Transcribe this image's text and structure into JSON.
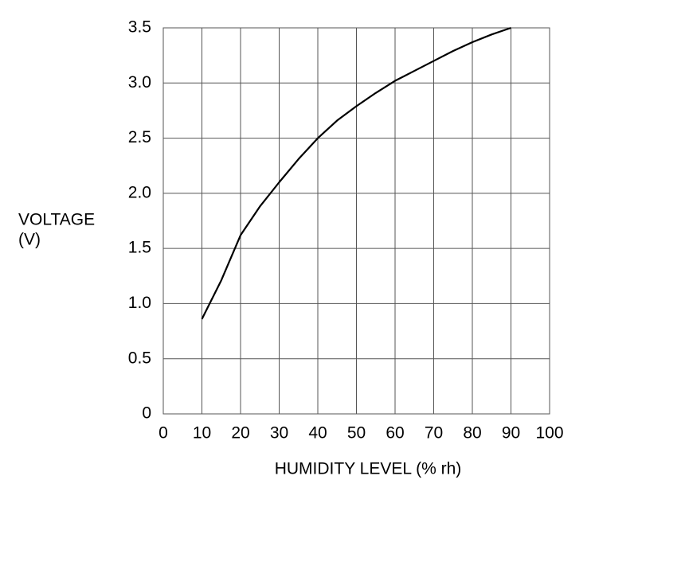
{
  "chart_data": {
    "type": "line",
    "ylabel_lines": [
      "VOLTAGE",
      "(V)"
    ],
    "xlabel": "HUMIDITY LEVEL (% rh)",
    "x": [
      10,
      15,
      20,
      25,
      30,
      35,
      40,
      45,
      50,
      55,
      60,
      65,
      70,
      75,
      80,
      85,
      90
    ],
    "series": [
      {
        "color": "#000000",
        "values": [
          0.86,
          1.21,
          1.62,
          1.88,
          2.1,
          2.31,
          2.5,
          2.66,
          2.79,
          2.91,
          3.02,
          3.11,
          3.2,
          3.29,
          3.37,
          3.44,
          3.5
        ]
      }
    ],
    "xlim": [
      0,
      100
    ],
    "xticks": [
      0,
      10,
      20,
      30,
      40,
      50,
      60,
      70,
      80,
      90,
      100
    ],
    "ylim": [
      0,
      3.5
    ],
    "yticks": [
      0,
      0.5,
      {
        "value": 1,
        "label": "1.0"
      },
      1.5,
      {
        "value": 2,
        "label": "2.0"
      },
      2.5,
      {
        "value": 3,
        "label": "3.0"
      },
      3.5
    ],
    "grid": true
  }
}
